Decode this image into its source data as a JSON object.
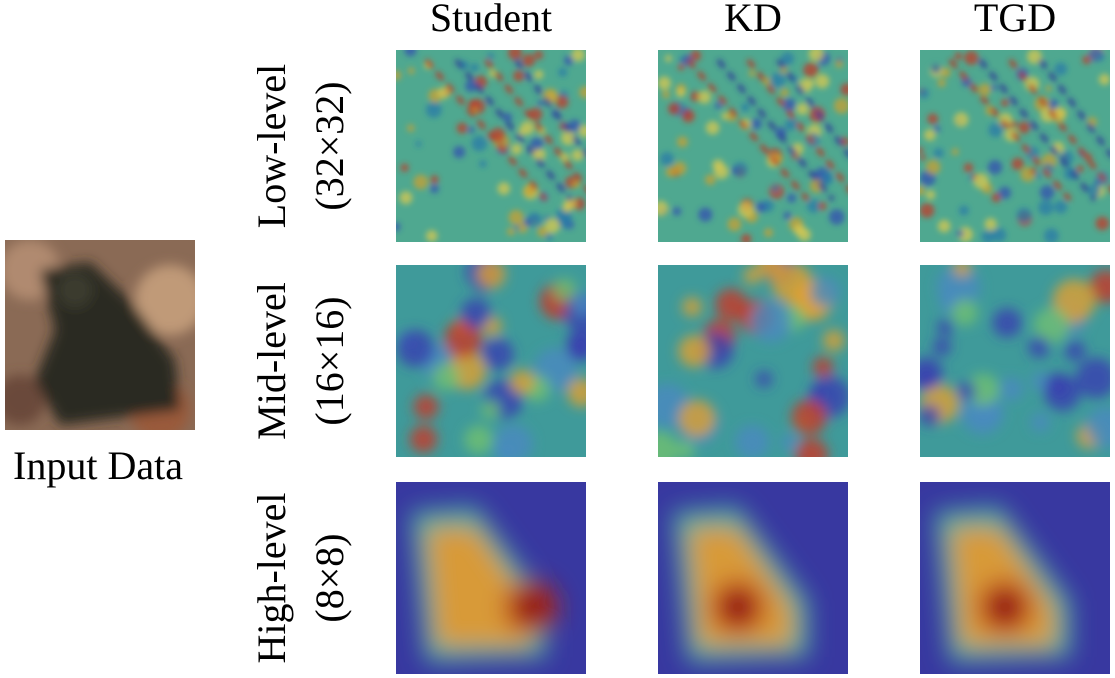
{
  "columns": [
    "Student",
    "KD",
    "TGD"
  ],
  "rows": [
    {
      "label": "Low-level",
      "resolution": "(32×32)"
    },
    {
      "label": "Mid-level",
      "resolution": "(16×16)"
    },
    {
      "label": "High-level",
      "resolution": "(8×8)"
    }
  ],
  "input_label": "Input Data"
}
